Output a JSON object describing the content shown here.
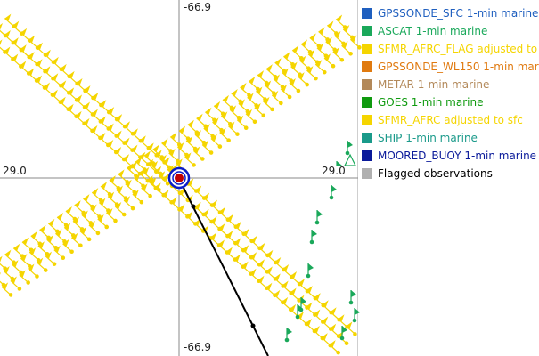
{
  "map": {
    "top_label": "-66.9",
    "bottom_label": "-66.9",
    "left_label": "29.0",
    "right_label": "29.0"
  },
  "colors": {
    "sfmr": "#f5d500",
    "ascat": "#1aa85a",
    "track": "#000000",
    "center": "#c00000",
    "ring": "#0a1cc8",
    "axis": "#8a8a8a"
  },
  "legend": [
    {
      "label": "GPSSONDE_SFC 1-min marine",
      "color": "#1f5fbf",
      "text_color": "#1f5fbf"
    },
    {
      "label": "ASCAT 1-min marine",
      "color": "#1aa85a",
      "text_color": "#1aa85a"
    },
    {
      "label": "SFMR_AFRC_FLAG adjusted to",
      "color": "#f5d500",
      "text_color": "#f5d500"
    },
    {
      "label": "GPSSONDE_WL150 1-min mar",
      "color": "#e07a10",
      "text_color": "#e07a10"
    },
    {
      "label": "METAR 1-min marine",
      "color": "#b3895a",
      "text_color": "#b3895a"
    },
    {
      "label": "GOES 1-min marine",
      "color": "#0f9a0f",
      "text_color": "#0f9a0f"
    },
    {
      "label": "SFMR_AFRC adjusted to sfc",
      "color": "#f5d500",
      "text_color": "#f5d500"
    },
    {
      "label": "SHIP 1-min marine",
      "color": "#1a9a8a",
      "text_color": "#1a9a8a"
    },
    {
      "label": "MOORED_BUOY 1-min marine",
      "color": "#0a1a9a",
      "text_color": "#0a1a9a"
    },
    {
      "label": "Flagged observations",
      "color": "#b0b0b0",
      "text_color": "#000000"
    }
  ]
}
